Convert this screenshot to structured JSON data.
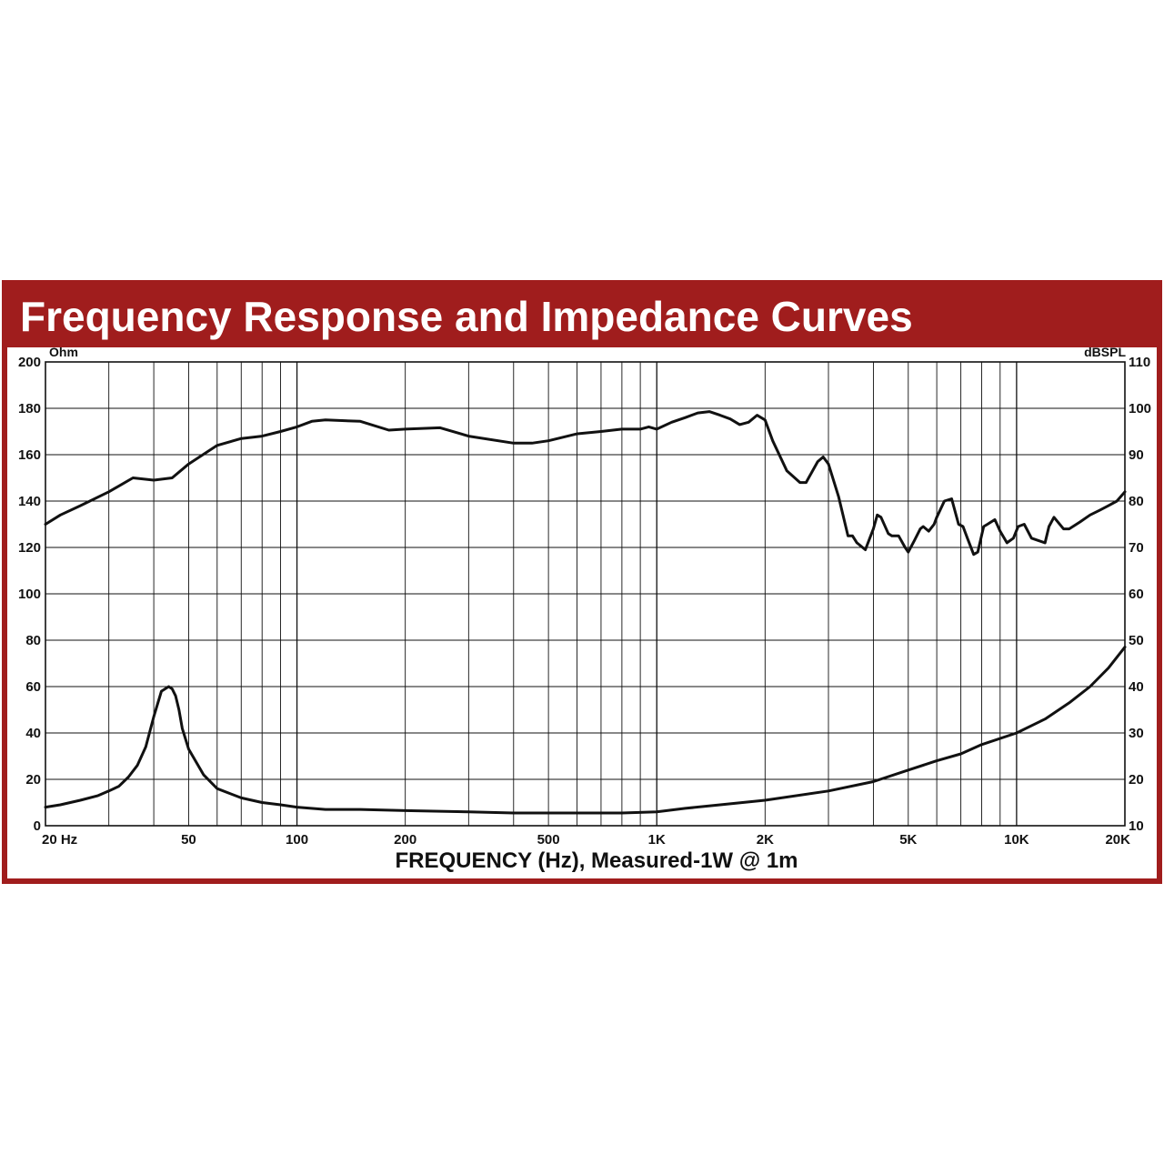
{
  "chart_data": {
    "type": "line",
    "title": "Frequency Response and Impedance Curves",
    "xlabel": "FREQUENCY (Hz), Measured-1W @ 1m",
    "ylabel_left": "Ohm",
    "ylabel_right": "dBSPL",
    "x_scale": "log",
    "xlim": [
      20,
      20000
    ],
    "ylim_left": [
      0,
      200
    ],
    "ylim_right": [
      10,
      110
    ],
    "x_ticks": [
      {
        "value": 20,
        "label": "20 Hz"
      },
      {
        "value": 50,
        "label": "50"
      },
      {
        "value": 100,
        "label": "100"
      },
      {
        "value": 200,
        "label": "200"
      },
      {
        "value": 500,
        "label": "500"
      },
      {
        "value": 1000,
        "label": "1K"
      },
      {
        "value": 2000,
        "label": "2K"
      },
      {
        "value": 5000,
        "label": "5K"
      },
      {
        "value": 10000,
        "label": "10K"
      },
      {
        "value": 20000,
        "label": "20K"
      }
    ],
    "y_ticks_left": [
      "0",
      "20",
      "40",
      "60",
      "80",
      "100",
      "120",
      "140",
      "160",
      "180",
      "200"
    ],
    "y_ticks_right": [
      "10",
      "20",
      "30",
      "40",
      "50",
      "60",
      "70",
      "80",
      "90",
      "100",
      "110"
    ],
    "grid": true,
    "series": [
      {
        "axis": "right",
        "x": [
          20,
          22,
          25,
          30,
          35,
          40,
          45,
          50,
          60,
          70,
          80,
          90,
          100,
          110,
          120,
          150,
          180,
          200,
          250,
          300,
          400,
          450,
          500,
          600,
          700,
          800,
          900,
          950,
          1000,
          1100,
          1200,
          1300,
          1400,
          1500,
          1600,
          1700,
          1800,
          1900,
          2000,
          2100,
          2300,
          2500,
          2600,
          2800,
          2900,
          3000,
          3200,
          3400,
          3500,
          3600,
          3800,
          4000,
          4100,
          4200,
          4400,
          4500,
          4700,
          4900,
          5000,
          5200,
          5400,
          5500,
          5700,
          5900,
          6000,
          6300,
          6600,
          6900,
          7100,
          7300,
          7600,
          7800,
          8100,
          8300,
          8700,
          9000,
          9400,
          9800,
          10100,
          10500,
          11000,
          11500,
          12000,
          12300,
          12700,
          13500,
          14000,
          15000,
          16000,
          17000,
          18000,
          19000,
          20000
        ],
        "y": [
          75,
          77,
          79,
          82,
          85,
          84.5,
          85,
          88,
          92,
          93.5,
          94,
          95,
          96,
          97.2,
          97.5,
          97.2,
          95.3,
          95.5,
          95.8,
          94,
          92.5,
          92.5,
          93,
          94.5,
          95,
          95.5,
          95.5,
          96,
          95.5,
          97,
          98,
          99,
          99.3,
          98.5,
          97.7,
          96.5,
          97,
          98.5,
          97.5,
          93,
          86.5,
          84,
          84,
          88.5,
          89.5,
          88,
          81,
          72.5,
          72.5,
          71,
          69.5,
          74,
          77,
          76.5,
          73,
          72.5,
          72.5,
          70,
          69,
          71.5,
          74,
          74.5,
          73.5,
          75,
          76.5,
          80,
          80.5,
          75,
          74.5,
          72,
          68.5,
          69,
          74.5,
          75,
          76,
          73.5,
          71,
          72,
          74.5,
          75,
          72,
          71.5,
          71,
          74.5,
          76.5,
          74,
          74,
          75.5,
          77,
          78,
          79,
          80,
          82
        ]
      },
      {
        "axis": "left",
        "x": [
          20,
          22,
          25,
          28,
          30,
          32,
          34,
          36,
          38,
          40,
          42,
          44,
          45,
          46,
          47,
          48,
          50,
          55,
          60,
          70,
          80,
          90,
          100,
          120,
          150,
          200,
          300,
          400,
          500,
          600,
          800,
          1000,
          1200,
          1500,
          2000,
          3000,
          4000,
          5000,
          6000,
          7000,
          8000,
          10000,
          12000,
          14000,
          16000,
          18000,
          20000
        ],
        "y": [
          8,
          9,
          11,
          13,
          15,
          17,
          21,
          26,
          34,
          47,
          58,
          60,
          59,
          56,
          50,
          42,
          33,
          22,
          16,
          12,
          10,
          9,
          8,
          7,
          7,
          6.5,
          6,
          5.5,
          5.5,
          5.5,
          5.5,
          6,
          7.5,
          9,
          11,
          15,
          19,
          24,
          28,
          31,
          35,
          40,
          46,
          53,
          60,
          68,
          77
        ]
      }
    ]
  }
}
